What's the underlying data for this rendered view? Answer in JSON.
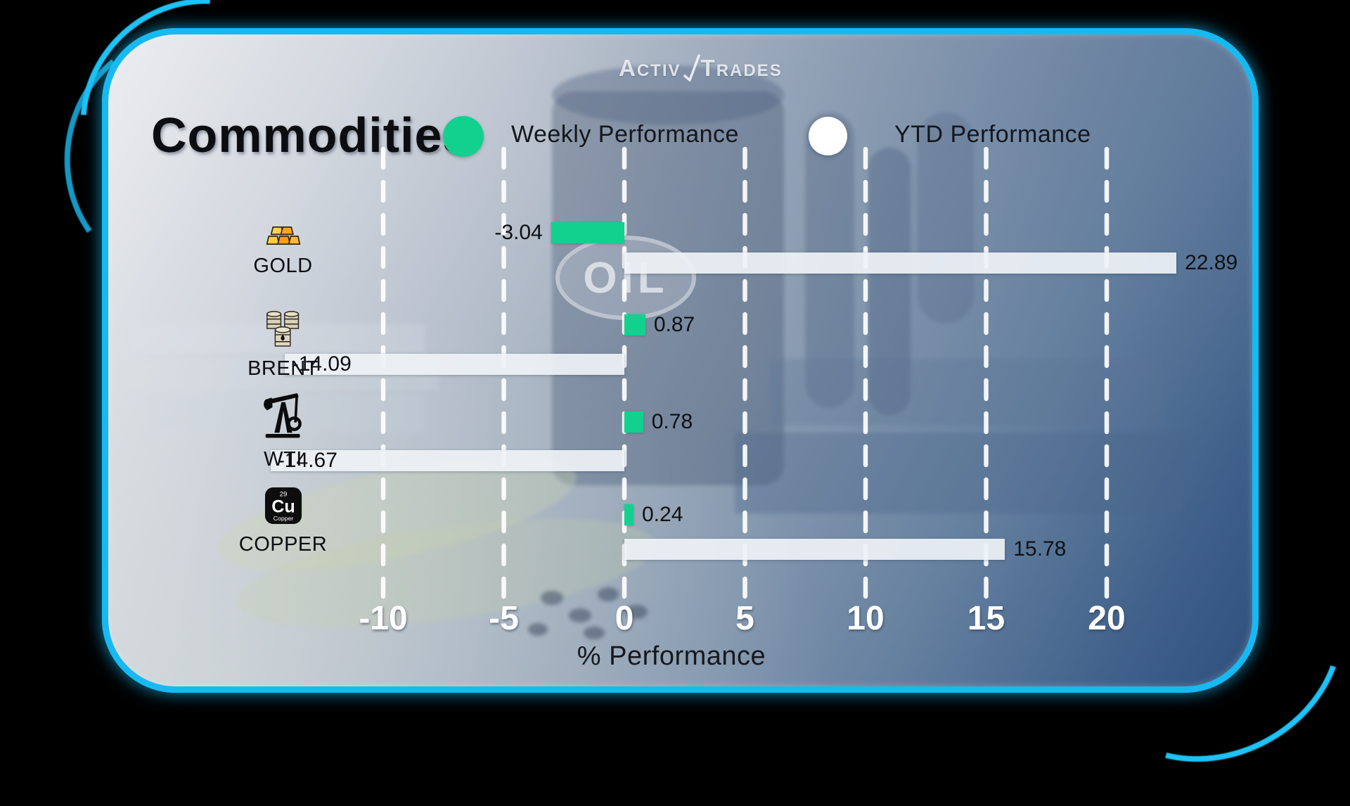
{
  "brand": {
    "name": "ActivTrades",
    "part1": "Activ",
    "part2": "Trades"
  },
  "header": {
    "title": "Commodities"
  },
  "legend": {
    "weekly_label": "Weekly Performance",
    "ytd_label": "YTD Performance",
    "weekly_color": "#12d18e",
    "ytd_color": "#ffffff"
  },
  "axis": {
    "xlabel": "% Performance",
    "ticks": [
      -10,
      -5,
      0,
      5,
      10,
      15,
      20
    ]
  },
  "watermark": "OIL",
  "icons": {
    "copper_tile": {
      "number": "29",
      "symbol": "Cu",
      "name": "Copper"
    }
  },
  "colors": {
    "frame_border": "#17b9f2",
    "weekly_bar": "#12d18e",
    "ytd_bar": "#eef2f6",
    "axis_text": "#ffffff",
    "panel_top_left": "#edeef1",
    "panel_bottom_right": "#2e4f7c"
  },
  "chart_data": {
    "type": "bar",
    "orientation": "horizontal",
    "title": "Commodities",
    "xlabel": "% Performance",
    "categories": [
      "GOLD",
      "BRENT",
      "WTI",
      "COPPER"
    ],
    "category_icons": [
      "gold-bars-icon",
      "oil-barrels-icon",
      "pump-jack-icon",
      "copper-element-icon"
    ],
    "series": [
      {
        "name": "Weekly Performance",
        "color": "#12d18e",
        "values": [
          -3.04,
          0.87,
          0.78,
          0.24
        ]
      },
      {
        "name": "YTD Performance",
        "color": "#eef2f6",
        "values": [
          22.89,
          -14.09,
          -14.67,
          15.78
        ]
      }
    ],
    "x_ticks": [
      -10,
      -5,
      0,
      5,
      10,
      15,
      20
    ],
    "xlim": [
      -14.5,
      24.5
    ],
    "grid": "vertical-dashed-white",
    "legend_position": "top"
  }
}
